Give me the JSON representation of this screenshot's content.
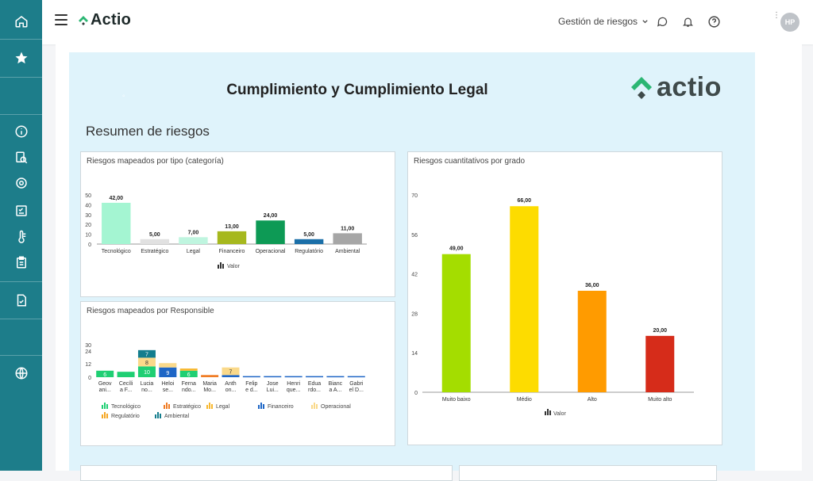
{
  "app": {
    "brand": "Actio",
    "module_nav": "Gestión de riesgos",
    "user_initials": "HP"
  },
  "sidebar": {
    "items": [
      "home-icon",
      "star-icon",
      "info-icon",
      "search-doc-icon",
      "settings-cog-icon",
      "checklist-icon",
      "thermometer-icon",
      "clipboard-icon",
      "document-check-icon",
      "globe-icon"
    ]
  },
  "report": {
    "title": "Cumplimiento y Cumplimiento Legal",
    "logo_text": "actio",
    "section_title": "Resumen de riesgos"
  },
  "colors": {
    "sidebar": "#1d7d8a",
    "report_bg": "#dff3fb",
    "brand_green": "#2bb673",
    "brand_dark": "#2f3a3a"
  },
  "chart_data": [
    {
      "type": "bar",
      "title": "Riesgos mapeados por tipo (categoría)",
      "categories": [
        "Tecnológico",
        "Estratégico",
        "Legal",
        "Financeiro",
        "Operacional",
        "Regulatório",
        "Ambiental"
      ],
      "values": [
        42,
        5,
        7,
        13,
        24,
        5,
        11
      ],
      "value_labels": [
        "42,00",
        "5,00",
        "7,00",
        "13,00",
        "24,00",
        "5,00",
        "11,00"
      ],
      "colors": [
        "#a4f5d2",
        "#e1e1e1",
        "#bff5df",
        "#a6b81e",
        "#0d9a55",
        "#1b6fa8",
        "#a6a6a6"
      ],
      "yticks": [
        "50",
        "40",
        "30",
        "20",
        "10",
        "0"
      ],
      "ylim": [
        0,
        50
      ],
      "legend": "Valor"
    },
    {
      "type": "bar",
      "title": "Riesgos cuantitativos por grado",
      "categories": [
        "Muito baixo",
        "Médio",
        "Alto",
        "Muito alto"
      ],
      "values": [
        49,
        66,
        36,
        20
      ],
      "value_labels": [
        "49,00",
        "66,00",
        "36,00",
        "20,00"
      ],
      "colors": [
        "#a4dd00",
        "#fddc00",
        "#ff9b00",
        "#d62c1a"
      ],
      "yticks": [
        "70",
        "56",
        "42",
        "28",
        "14",
        "0"
      ],
      "ylim": [
        0,
        70
      ],
      "legend": "Valor"
    },
    {
      "type": "bar",
      "title": "Riesgos mapeados por Responsible",
      "categories": [
        "Geov ani...",
        "Cecíli a F...",
        "Lucia no...",
        "Heloi se...",
        "Ferna ndo...",
        "Maria Mo...",
        "Anth on...",
        "Felip e d...",
        "Jose Lui...",
        "Henri que...",
        "Edua rdo...",
        "Bianc a A...",
        "Gabri el D..."
      ],
      "yticks": [
        "30",
        "24",
        "12",
        "0"
      ],
      "series": [
        {
          "name": "Tecnológico",
          "color": "#1fcf73",
          "values": [
            6,
            5,
            10,
            0,
            6,
            0,
            0,
            0,
            0,
            0,
            0,
            0,
            0
          ]
        },
        {
          "name": "Estratégico",
          "color": "#f07c25",
          "values": [
            0,
            0,
            0,
            0,
            0,
            2,
            0,
            0,
            0,
            0,
            0,
            0,
            0
          ]
        },
        {
          "name": "Legal",
          "color": "#f8b830",
          "values": [
            0,
            0,
            0,
            0,
            2,
            0,
            0,
            0,
            0,
            0,
            0,
            0,
            0
          ]
        },
        {
          "name": "Financeiro",
          "color": "#1e66c6",
          "values": [
            0,
            0,
            0,
            9,
            0,
            0,
            2,
            1,
            1,
            1,
            1,
            1,
            1
          ]
        },
        {
          "name": "Operacional",
          "color": "#fad98a",
          "values": [
            0,
            0,
            8,
            4,
            0,
            0,
            7,
            0,
            0,
            0,
            0,
            0,
            0
          ]
        },
        {
          "name": "Regulatório",
          "color": "#f5a623",
          "values": [
            0,
            0,
            0,
            0,
            0,
            0,
            0,
            0,
            0,
            0,
            0,
            0,
            0
          ]
        },
        {
          "name": "Ambiental",
          "color": "#137d8d",
          "values": [
            0,
            0,
            7,
            0,
            0,
            0,
            0,
            0,
            0,
            0,
            0,
            0,
            0
          ]
        }
      ],
      "segment_labels": [
        "6",
        "",
        "10",
        "8",
        "7",
        "9",
        "4",
        "",
        "2",
        "",
        "",
        "7"
      ]
    }
  ]
}
